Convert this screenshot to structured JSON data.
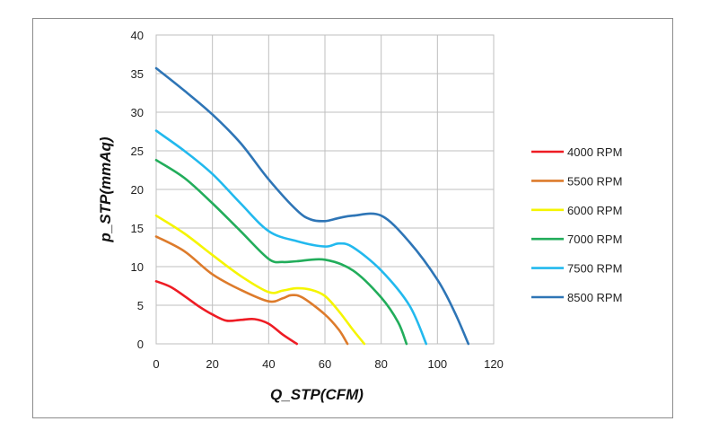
{
  "chart_data": {
    "type": "line",
    "title": "",
    "xlabel": "Q_STP(CFM)",
    "ylabel": "p_STP(mmAq)",
    "xlim": [
      0,
      120
    ],
    "ylim": [
      0,
      40
    ],
    "xticks": [
      0,
      20,
      40,
      60,
      80,
      100,
      120
    ],
    "yticks": [
      0,
      5,
      10,
      15,
      20,
      25,
      30,
      35,
      40
    ],
    "grid": true,
    "legend_position": "right",
    "series": [
      {
        "name": "4000 RPM",
        "color": "#ee1c24",
        "points": [
          [
            0,
            8.1
          ],
          [
            5,
            7.4
          ],
          [
            10,
            6.2
          ],
          [
            15,
            4.9
          ],
          [
            20,
            3.8
          ],
          [
            25,
            3.0
          ],
          [
            30,
            3.1
          ],
          [
            35,
            3.2
          ],
          [
            40,
            2.6
          ],
          [
            45,
            1.2
          ],
          [
            50,
            0
          ]
        ]
      },
      {
        "name": "5500 RPM",
        "color": "#dd7b2b",
        "points": [
          [
            0,
            13.9
          ],
          [
            10,
            12.0
          ],
          [
            20,
            9.0
          ],
          [
            30,
            7.0
          ],
          [
            40,
            5.5
          ],
          [
            45,
            5.9
          ],
          [
            48,
            6.3
          ],
          [
            52,
            6.0
          ],
          [
            60,
            3.8
          ],
          [
            65,
            1.8
          ],
          [
            68,
            0
          ]
        ]
      },
      {
        "name": "6000 RPM",
        "color": "#f5f500",
        "points": [
          [
            0,
            16.6
          ],
          [
            10,
            14.3
          ],
          [
            20,
            11.5
          ],
          [
            30,
            8.8
          ],
          [
            40,
            6.7
          ],
          [
            45,
            6.9
          ],
          [
            50,
            7.2
          ],
          [
            55,
            7.0
          ],
          [
            60,
            6.2
          ],
          [
            65,
            4.2
          ],
          [
            70,
            1.8
          ],
          [
            74,
            0
          ]
        ]
      },
      {
        "name": "7000 RPM",
        "color": "#22ad5b",
        "points": [
          [
            0,
            23.8
          ],
          [
            10,
            21.5
          ],
          [
            20,
            18.2
          ],
          [
            30,
            14.6
          ],
          [
            40,
            11.0
          ],
          [
            45,
            10.6
          ],
          [
            50,
            10.7
          ],
          [
            60,
            10.9
          ],
          [
            70,
            9.5
          ],
          [
            80,
            6.0
          ],
          [
            86,
            2.8
          ],
          [
            89,
            0
          ]
        ]
      },
      {
        "name": "7500 RPM",
        "color": "#22b9ee",
        "points": [
          [
            0,
            27.6
          ],
          [
            10,
            25.0
          ],
          [
            20,
            22.0
          ],
          [
            30,
            18.2
          ],
          [
            40,
            14.6
          ],
          [
            50,
            13.3
          ],
          [
            60,
            12.6
          ],
          [
            65,
            13.0
          ],
          [
            70,
            12.5
          ],
          [
            80,
            9.5
          ],
          [
            90,
            5.0
          ],
          [
            96,
            0
          ]
        ]
      },
      {
        "name": "8500 RPM",
        "color": "#2e75b6",
        "points": [
          [
            0,
            35.7
          ],
          [
            10,
            32.8
          ],
          [
            20,
            29.7
          ],
          [
            30,
            26.0
          ],
          [
            40,
            21.3
          ],
          [
            50,
            17.3
          ],
          [
            55,
            16.1
          ],
          [
            60,
            15.9
          ],
          [
            65,
            16.3
          ],
          [
            70,
            16.6
          ],
          [
            80,
            16.6
          ],
          [
            90,
            13.2
          ],
          [
            100,
            8.3
          ],
          [
            106,
            4.2
          ],
          [
            111,
            0
          ]
        ]
      }
    ]
  }
}
